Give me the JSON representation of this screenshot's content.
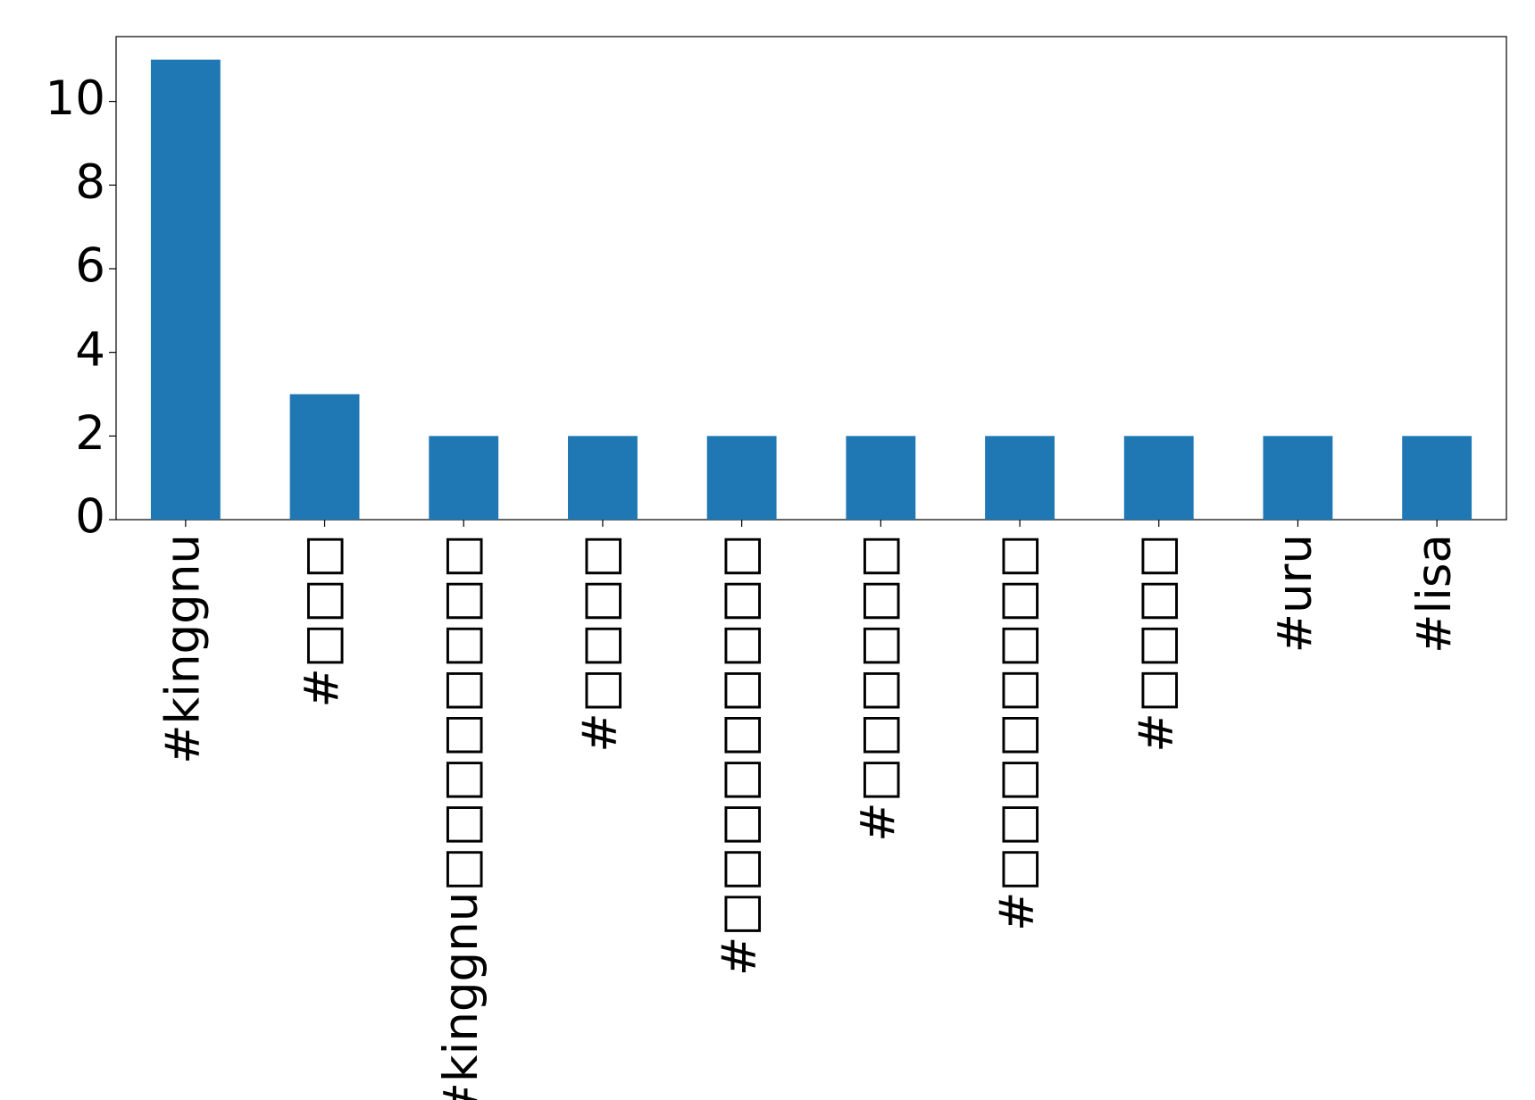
{
  "chart_data": {
    "type": "bar",
    "categories": [
      "#kinggnu",
      "#□□□",
      "#kinggnu□□□□□□□□",
      "#□□□□",
      "#□□□□□□□□□",
      "#□□□□□□",
      "#□□□□□□□□",
      "#□□□□",
      "#uru",
      "#lisa"
    ],
    "values": [
      11,
      3,
      2,
      2,
      2,
      2,
      2,
      2,
      2,
      2
    ],
    "color": "#1f77b4",
    "ylim": [
      0,
      11.55
    ],
    "yticks": [
      0,
      2,
      4,
      6,
      8,
      10
    ],
    "grid": false
  }
}
